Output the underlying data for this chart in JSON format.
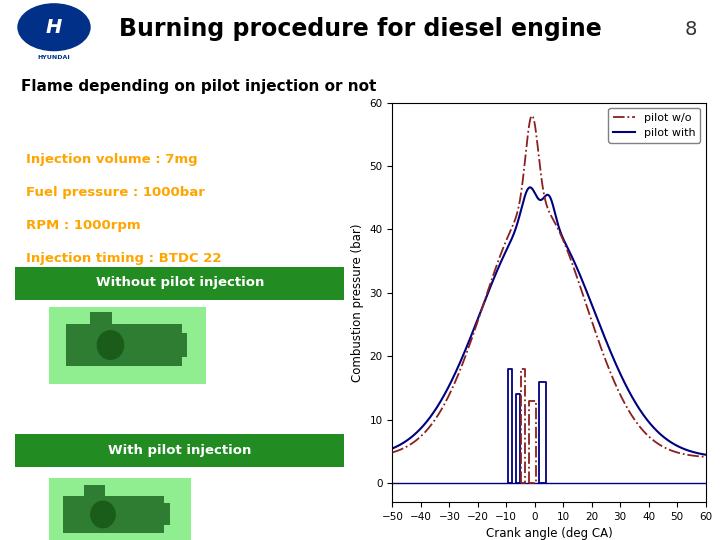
{
  "title": "Burning procedure for diesel engine",
  "subtitle": "Flame depending on pilot injection or not",
  "page_number": "8",
  "info_lines": [
    "Injection volume : 7mg",
    "Fuel pressure : 1000bar",
    "RPM : 1000rpm",
    "Injection timing : BTDC 22"
  ],
  "info_color": "#FFA500",
  "btn1_text": "Without pilot injection",
  "btn2_text": "With pilot injection",
  "btn_color": "#228B22",
  "thumb_color": "#90EE90",
  "thumb_icon_color": "#2E7D32",
  "plot_xlabel": "Crank angle (deg CA)",
  "plot_ylabel": "Combustion pressure (bar)",
  "plot_ylim": [
    -3,
    60
  ],
  "plot_xlim": [
    -50,
    60
  ],
  "plot_xticks": [
    -50,
    -40,
    -30,
    -20,
    -10,
    0,
    10,
    20,
    30,
    40,
    50,
    60
  ],
  "plot_yticks": [
    0,
    10,
    20,
    30,
    40,
    50,
    60
  ],
  "legend_labels": [
    "pilot w/o",
    "pilot with"
  ],
  "line_without_color": "#8B2020",
  "line_with_color": "#000080",
  "header_bg": "#FFFFFF",
  "title_color": "#000000",
  "hyundai_blue": "#003087"
}
